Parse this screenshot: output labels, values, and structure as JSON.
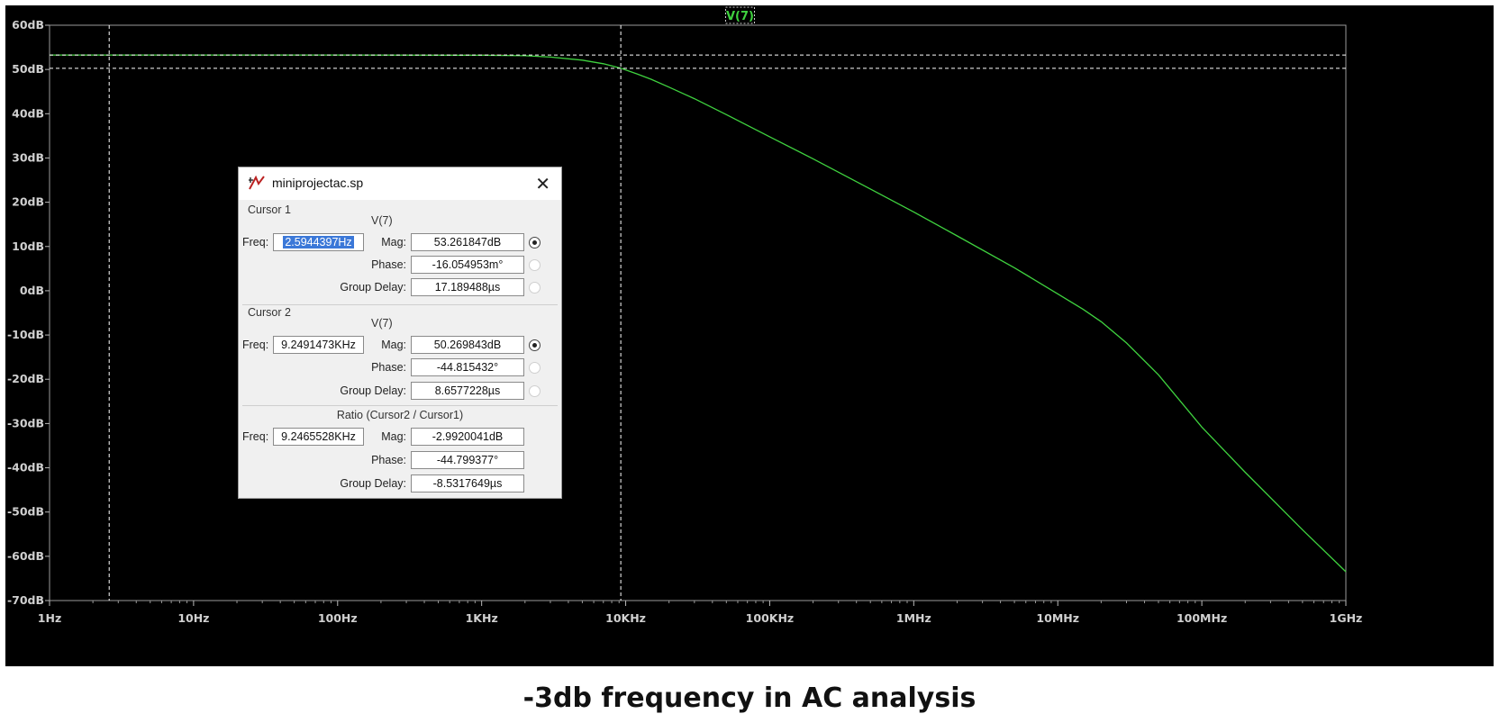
{
  "chart_data": {
    "type": "line",
    "trace_label": "V(7)",
    "x_scale": "log",
    "xlim": [
      1,
      1000000000
    ],
    "ylim": [
      -70,
      60
    ],
    "x_ticks": [
      "1Hz",
      "10Hz",
      "100Hz",
      "1KHz",
      "10KHz",
      "100KHz",
      "1MHz",
      "10MHz",
      "100MHz",
      "1GHz"
    ],
    "y_ticks": [
      "60dB",
      "50dB",
      "40dB",
      "30dB",
      "20dB",
      "10dB",
      "0dB",
      "-10dB",
      "-20dB",
      "-30dB",
      "-40dB",
      "-50dB",
      "-60dB",
      "-70dB"
    ],
    "grid": false,
    "series": [
      {
        "name": "V(7)",
        "color": "#3fd23f",
        "x": [
          1,
          10,
          100,
          1000,
          2000,
          3000,
          5000,
          7000,
          9249,
          12000,
          15000,
          20000,
          30000,
          50000,
          100000,
          200000,
          500000,
          1000000,
          2000000,
          5000000,
          10000000,
          15000000,
          20000000,
          30000000,
          50000000,
          100000000,
          200000000,
          500000000,
          1000000000
        ],
        "values": [
          53.26,
          53.26,
          53.26,
          53.2,
          53.1,
          52.8,
          52.1,
          51.3,
          50.27,
          49.0,
          47.8,
          46.0,
          43.4,
          39.8,
          34.8,
          29.8,
          23.0,
          17.8,
          12.4,
          5.2,
          -0.7,
          -4.2,
          -7.0,
          -11.8,
          -19.0,
          -30.8,
          -41.0,
          -54.0,
          -63.5
        ]
      }
    ],
    "cursors": [
      {
        "freq_hz": 2.5944397,
        "mag_db": 53.261847
      },
      {
        "freq_hz": 9249.1473,
        "mag_db": 50.269843
      }
    ]
  },
  "dialog": {
    "title": "miniprojectac.sp",
    "cursor1": {
      "group": "Cursor 1",
      "signal": "V(7)",
      "freq_label": "Freq:",
      "freq": "2.5944397Hz",
      "mag_label": "Mag:",
      "mag": "53.261847dB",
      "phase_label": "Phase:",
      "phase": "-16.054953m°",
      "gd_label": "Group Delay:",
      "gd": "17.189488µs"
    },
    "cursor2": {
      "group": "Cursor 2",
      "signal": "V(7)",
      "freq_label": "Freq:",
      "freq": "9.2491473KHz",
      "mag_label": "Mag:",
      "mag": "50.269843dB",
      "phase_label": "Phase:",
      "phase": "-44.815432°",
      "gd_label": "Group Delay:",
      "gd": "8.6577228µs"
    },
    "ratio": {
      "group": "Ratio (Cursor2 / Cursor1)",
      "freq_label": "Freq:",
      "freq": "9.2465528KHz",
      "mag_label": "Mag:",
      "mag": "-2.9920041dB",
      "phase_label": "Phase:",
      "phase": "-44.799377°",
      "gd_label": "Group Delay:",
      "gd": "-8.5317649µs"
    }
  },
  "caption": "-3db frequency in AC analysis"
}
